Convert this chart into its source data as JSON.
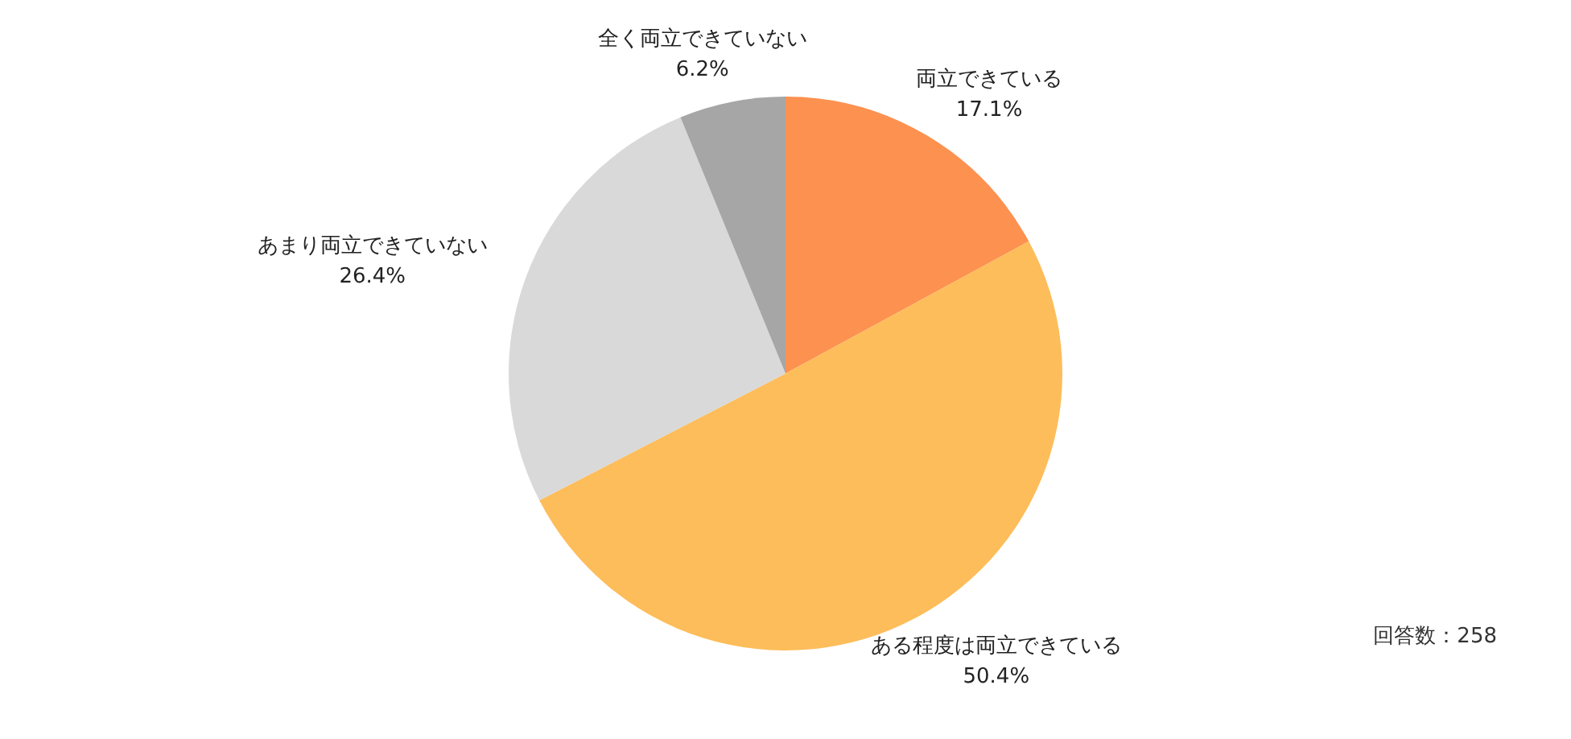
{
  "chart_data": {
    "type": "pie",
    "categories": [
      "両立できている",
      "ある程度は両立できている",
      "あまり両立できていない",
      "全く両立できていない"
    ],
    "values": [
      17.1,
      50.4,
      26.4,
      6.2
    ],
    "colors": [
      "#fd9150",
      "#fdbd5a",
      "#d9d9d9",
      "#a6a6a6"
    ],
    "value_labels": [
      "17.1%",
      "50.4%",
      "26.4%",
      "6.2%"
    ],
    "legend": false,
    "annotations": [
      "回答数：258"
    ]
  }
}
